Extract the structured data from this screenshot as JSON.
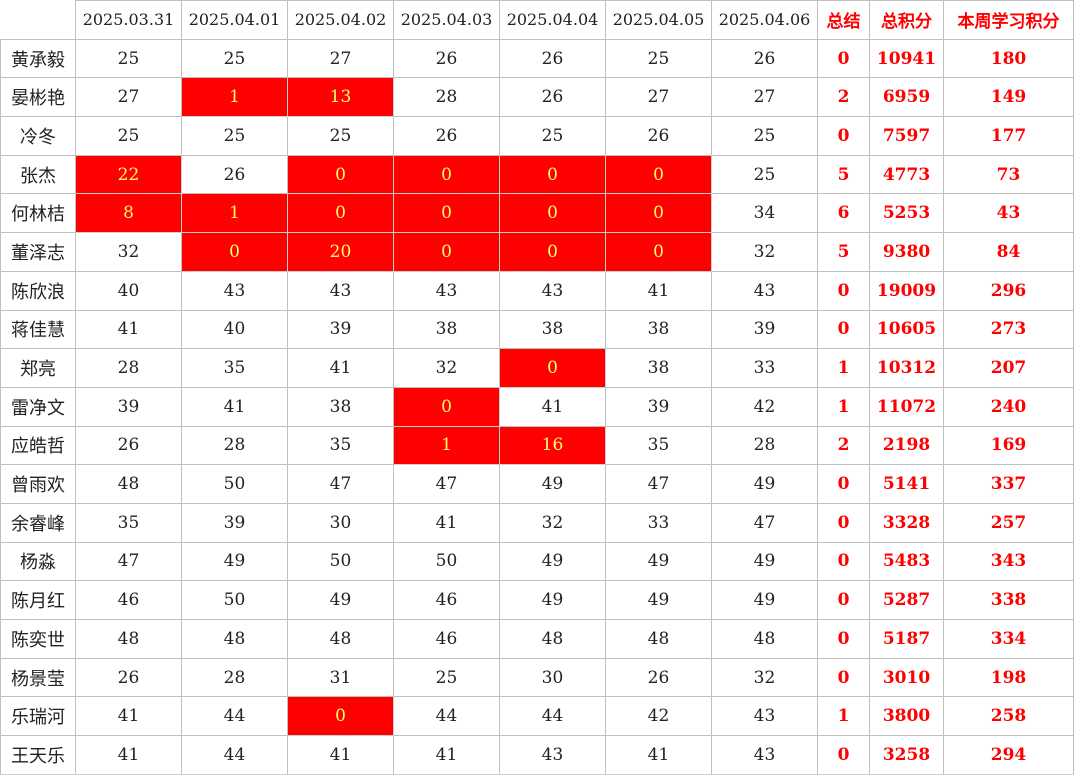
{
  "header": {
    "dates": [
      "2025.03.31",
      "2025.04.01",
      "2025.04.02",
      "2025.04.03",
      "2025.04.04",
      "2025.04.05",
      "2025.04.06"
    ],
    "summary_label": "总结",
    "total_label": "总积分",
    "week_label": "本周学习积分"
  },
  "colors": {
    "alert_background": "#ff0000",
    "alert_text": "#ffff66",
    "summary_text": "#ff0000"
  },
  "rows": [
    {
      "name": "黄承毅",
      "scores": [
        "25",
        "25",
        "27",
        "26",
        "26",
        "25",
        "26"
      ],
      "alerts": [
        false,
        false,
        false,
        false,
        false,
        false,
        false
      ],
      "summary": "0",
      "total": "10941",
      "week": "180"
    },
    {
      "name": "晏彬艳",
      "scores": [
        "27",
        "1",
        "13",
        "28",
        "26",
        "27",
        "27"
      ],
      "alerts": [
        false,
        true,
        true,
        false,
        false,
        false,
        false
      ],
      "summary": "2",
      "total": "6959",
      "week": "149"
    },
    {
      "name": "冷冬",
      "scores": [
        "25",
        "25",
        "25",
        "26",
        "25",
        "26",
        "25"
      ],
      "alerts": [
        false,
        false,
        false,
        false,
        false,
        false,
        false
      ],
      "summary": "0",
      "total": "7597",
      "week": "177"
    },
    {
      "name": "张杰",
      "scores": [
        "22",
        "26",
        "0",
        "0",
        "0",
        "0",
        "25"
      ],
      "alerts": [
        true,
        false,
        true,
        true,
        true,
        true,
        false
      ],
      "summary": "5",
      "total": "4773",
      "week": "73"
    },
    {
      "name": "何林桔",
      "scores": [
        "8",
        "1",
        "0",
        "0",
        "0",
        "0",
        "34"
      ],
      "alerts": [
        true,
        true,
        true,
        true,
        true,
        true,
        false
      ],
      "summary": "6",
      "total": "5253",
      "week": "43"
    },
    {
      "name": "董泽志",
      "scores": [
        "32",
        "0",
        "20",
        "0",
        "0",
        "0",
        "32"
      ],
      "alerts": [
        false,
        true,
        true,
        true,
        true,
        true,
        false
      ],
      "summary": "5",
      "total": "9380",
      "week": "84"
    },
    {
      "name": "陈欣浪",
      "scores": [
        "40",
        "43",
        "43",
        "43",
        "43",
        "41",
        "43"
      ],
      "alerts": [
        false,
        false,
        false,
        false,
        false,
        false,
        false
      ],
      "summary": "0",
      "total": "19009",
      "week": "296"
    },
    {
      "name": "蒋佳慧",
      "scores": [
        "41",
        "40",
        "39",
        "38",
        "38",
        "38",
        "39"
      ],
      "alerts": [
        false,
        false,
        false,
        false,
        false,
        false,
        false
      ],
      "summary": "0",
      "total": "10605",
      "week": "273"
    },
    {
      "name": "郑亮",
      "scores": [
        "28",
        "35",
        "41",
        "32",
        "0",
        "38",
        "33"
      ],
      "alerts": [
        false,
        false,
        false,
        false,
        true,
        false,
        false
      ],
      "summary": "1",
      "total": "10312",
      "week": "207"
    },
    {
      "name": "雷净文",
      "scores": [
        "39",
        "41",
        "38",
        "0",
        "41",
        "39",
        "42"
      ],
      "alerts": [
        false,
        false,
        false,
        true,
        false,
        false,
        false
      ],
      "summary": "1",
      "total": "11072",
      "week": "240"
    },
    {
      "name": "应皓哲",
      "scores": [
        "26",
        "28",
        "35",
        "1",
        "16",
        "35",
        "28"
      ],
      "alerts": [
        false,
        false,
        false,
        true,
        true,
        false,
        false
      ],
      "summary": "2",
      "total": "2198",
      "week": "169"
    },
    {
      "name": "曾雨欢",
      "scores": [
        "48",
        "50",
        "47",
        "47",
        "49",
        "47",
        "49"
      ],
      "alerts": [
        false,
        false,
        false,
        false,
        false,
        false,
        false
      ],
      "summary": "0",
      "total": "5141",
      "week": "337"
    },
    {
      "name": "余睿峰",
      "scores": [
        "35",
        "39",
        "30",
        "41",
        "32",
        "33",
        "47"
      ],
      "alerts": [
        false,
        false,
        false,
        false,
        false,
        false,
        false
      ],
      "summary": "0",
      "total": "3328",
      "week": "257"
    },
    {
      "name": "杨淼",
      "scores": [
        "47",
        "49",
        "50",
        "50",
        "49",
        "49",
        "49"
      ],
      "alerts": [
        false,
        false,
        false,
        false,
        false,
        false,
        false
      ],
      "summary": "0",
      "total": "5483",
      "week": "343"
    },
    {
      "name": "陈月红",
      "scores": [
        "46",
        "50",
        "49",
        "46",
        "49",
        "49",
        "49"
      ],
      "alerts": [
        false,
        false,
        false,
        false,
        false,
        false,
        false
      ],
      "summary": "0",
      "total": "5287",
      "week": "338"
    },
    {
      "name": "陈奕世",
      "scores": [
        "48",
        "48",
        "48",
        "46",
        "48",
        "48",
        "48"
      ],
      "alerts": [
        false,
        false,
        false,
        false,
        false,
        false,
        false
      ],
      "summary": "0",
      "total": "5187",
      "week": "334"
    },
    {
      "name": "杨景莹",
      "scores": [
        "26",
        "28",
        "31",
        "25",
        "30",
        "26",
        "32"
      ],
      "alerts": [
        false,
        false,
        false,
        false,
        false,
        false,
        false
      ],
      "summary": "0",
      "total": "3010",
      "week": "198"
    },
    {
      "name": "乐瑞河",
      "scores": [
        "41",
        "44",
        "0",
        "44",
        "44",
        "42",
        "43"
      ],
      "alerts": [
        false,
        false,
        true,
        false,
        false,
        false,
        false
      ],
      "summary": "1",
      "total": "3800",
      "week": "258"
    },
    {
      "name": "王天乐",
      "scores": [
        "41",
        "44",
        "41",
        "41",
        "43",
        "41",
        "43"
      ],
      "alerts": [
        false,
        false,
        false,
        false,
        false,
        false,
        false
      ],
      "summary": "0",
      "total": "3258",
      "week": "294"
    }
  ]
}
